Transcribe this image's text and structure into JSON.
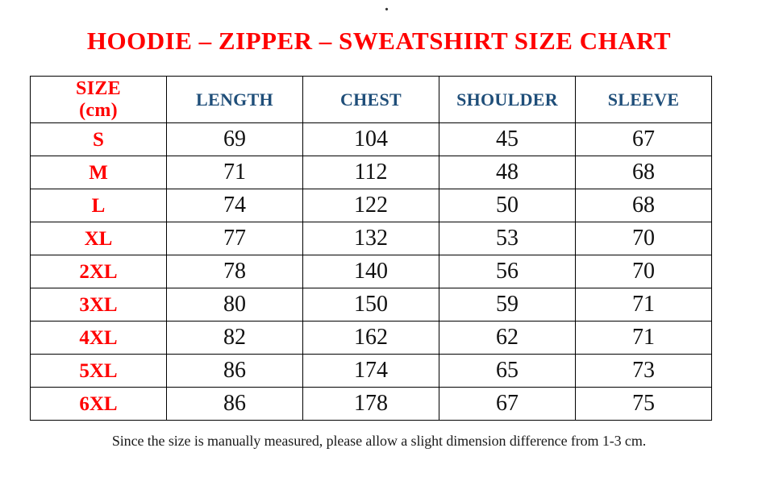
{
  "page": {
    "background": "#ffffff",
    "top_dot": "."
  },
  "title": {
    "text": "HOODIE – ZIPPER – SWEATSHIRT SIZE CHART",
    "color": "#ff0000"
  },
  "chart_data": {
    "type": "table",
    "title": "HOODIE – ZIPPER – SWEATSHIRT SIZE CHART",
    "columns": [
      "SIZE\n(cm)",
      "LENGTH",
      "CHEST",
      "SHOULDER",
      "SLEEVE"
    ],
    "rows": [
      [
        "S",
        69,
        104,
        45,
        67
      ],
      [
        "M",
        71,
        112,
        48,
        68
      ],
      [
        "L",
        74,
        122,
        50,
        68
      ],
      [
        "XL",
        77,
        132,
        53,
        70
      ],
      [
        "2XL",
        78,
        140,
        56,
        70
      ],
      [
        "3XL",
        80,
        150,
        59,
        71
      ],
      [
        "4XL",
        82,
        162,
        62,
        71
      ],
      [
        "5XL",
        86,
        174,
        65,
        73
      ],
      [
        "6XL",
        86,
        178,
        67,
        75
      ]
    ],
    "header_text_color": "#1f4e79",
    "size_column_text_color": "#ff0000",
    "value_text_color": "#111111",
    "border_color": "#000000"
  },
  "footnote": {
    "text": "Since the size is manually measured, please allow a slight dimension difference from 1-3 cm."
  }
}
